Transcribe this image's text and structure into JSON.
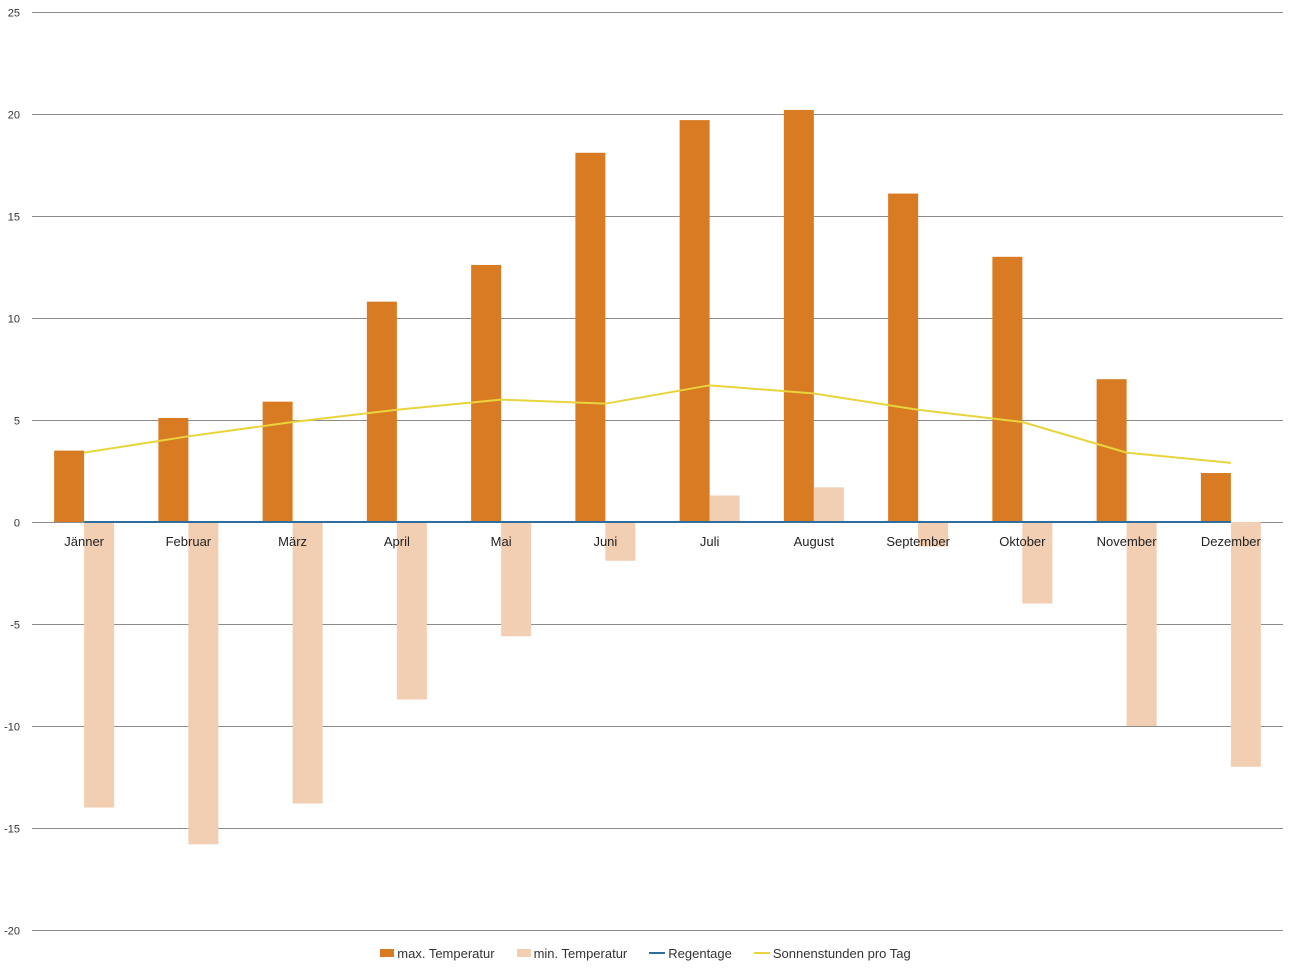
{
  "chart_data": {
    "type": "bar",
    "categories": [
      "Jänner",
      "Februar",
      "März",
      "April",
      "Mai",
      "Juni",
      "Juli",
      "August",
      "September",
      "Oktober",
      "November",
      "Dezember"
    ],
    "series": [
      {
        "name": "max. Temperatur",
        "kind": "bar",
        "color": "#D97B22",
        "values": [
          3.5,
          5.1,
          5.9,
          10.8,
          12.6,
          18.1,
          19.7,
          20.2,
          16.1,
          13.0,
          7.0,
          2.4
        ]
      },
      {
        "name": "min. Temperatur",
        "kind": "bar",
        "color": "#F2CEB3",
        "values": [
          -14.0,
          -15.8,
          -13.8,
          -8.7,
          -5.6,
          -1.9,
          1.3,
          1.7,
          -1.2,
          -4.0,
          -10.0,
          -12.0
        ]
      },
      {
        "name": "Regentage",
        "kind": "line",
        "color": "#2E6E9E",
        "values": [
          0,
          0,
          0,
          0,
          0,
          0,
          0,
          0,
          0,
          0,
          0,
          0
        ]
      },
      {
        "name": "Sonnenstunden pro Tag",
        "kind": "line",
        "color": "#E8D43C",
        "values": [
          3.4,
          4.2,
          4.9,
          5.5,
          6.0,
          5.8,
          6.7,
          6.3,
          5.5,
          4.9,
          3.4,
          2.9
        ]
      }
    ],
    "yticks": [
      "25",
      "20",
      "15",
      "10",
      "5",
      "0",
      "-5",
      "-10",
      "-15",
      "-20"
    ],
    "ylim": [
      -20,
      25
    ],
    "grid": true,
    "legend_position": "bottom"
  }
}
